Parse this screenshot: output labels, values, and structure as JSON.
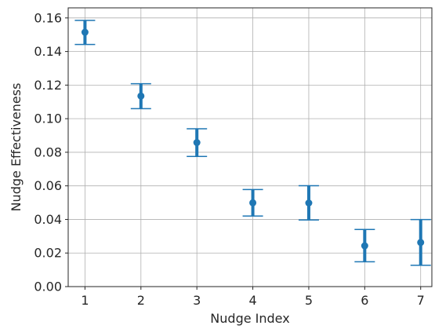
{
  "chart_data": {
    "type": "scatter",
    "xlabel": "Nudge Index",
    "ylabel": "Nudge Effectiveness",
    "xlim": [
      0.7,
      7.2
    ],
    "ylim": [
      0.0,
      0.166
    ],
    "xticks": [
      1,
      2,
      3,
      4,
      5,
      6,
      7
    ],
    "yticks": [
      0.0,
      0.02,
      0.04,
      0.06,
      0.08,
      0.1,
      0.12,
      0.14,
      0.16
    ],
    "ytick_labels": [
      "0.00",
      "0.02",
      "0.04",
      "0.06",
      "0.08",
      "0.10",
      "0.12",
      "0.14",
      "0.16"
    ],
    "grid": true,
    "series": [
      {
        "x": [
          1,
          2,
          3,
          4,
          5,
          6,
          7
        ],
        "y": [
          0.1515,
          0.1135,
          0.0858,
          0.0499,
          0.0498,
          0.0243,
          0.0263
        ],
        "err_low": [
          0.1442,
          0.106,
          0.0775,
          0.042,
          0.0397,
          0.0148,
          0.0127
        ],
        "err_high": [
          0.1585,
          0.1208,
          0.094,
          0.0578,
          0.0601,
          0.034,
          0.0399
        ],
        "color": "#1f77b4"
      }
    ]
  }
}
